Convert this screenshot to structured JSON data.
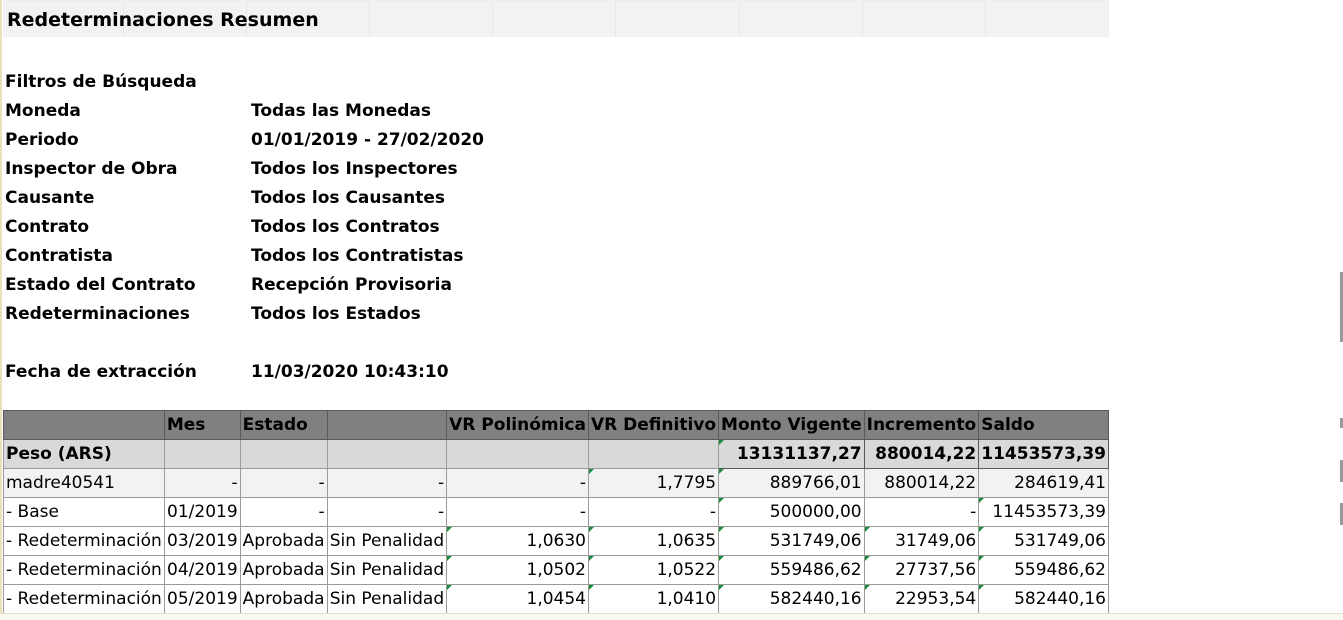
{
  "title": "Redeterminaciones Resumen",
  "filters": [
    {
      "label": "Filtros de Búsqueda",
      "value": ""
    },
    {
      "label": "Moneda",
      "value": "Todas las Monedas"
    },
    {
      "label": "Periodo",
      "value": "01/01/2019 - 27/02/2020"
    },
    {
      "label": "Inspector de Obra",
      "value": "Todos los Inspectores"
    },
    {
      "label": "Causante",
      "value": "Todos los Causantes"
    },
    {
      "label": "Contrato",
      "value": "Todos los Contratos"
    },
    {
      "label": "Contratista",
      "value": "Todos los Contratistas"
    },
    {
      "label": "Estado del Contrato",
      "value": "Recepción Provisoria"
    },
    {
      "label": "Redeterminaciones",
      "value": "Todos los Estados"
    }
  ],
  "extraction": {
    "label": "Fecha de extracción",
    "value": "11/03/2020 10:43:10"
  },
  "table": {
    "headers": [
      "",
      "Mes",
      "Estado",
      "",
      "VR Polinómica",
      "VR Definitivo",
      "Monto Vigente",
      "Incremento",
      "Saldo"
    ],
    "total_row": [
      "Peso (ARS)",
      "",
      "",
      "",
      "",
      "",
      "13131137,27",
      "880014,22",
      "11453573,39"
    ],
    "rows": [
      [
        "madre40541",
        "-",
        "-",
        "-",
        "-",
        "1,7795",
        "889766,01",
        "880014,22",
        "284619,41"
      ],
      [
        "- Base",
        "01/2019",
        "-",
        "-",
        "-",
        "-",
        "500000,00",
        "-",
        "11453573,39"
      ],
      [
        "- Redeterminación",
        "03/2019",
        "Aprobada",
        "Sin Penalidad",
        "1,0630",
        "1,0635",
        "531749,06",
        "31749,06",
        "531749,06"
      ],
      [
        "- Redeterminación",
        "04/2019",
        "Aprobada",
        "Sin Penalidad",
        "1,0502",
        "1,0522",
        "559486,62",
        "27737,56",
        "559486,62"
      ],
      [
        "- Redeterminación",
        "05/2019",
        "Aprobada",
        "Sin Penalidad",
        "1,0454",
        "1,0410",
        "582440,16",
        "22953,54",
        "582440,16"
      ]
    ]
  }
}
